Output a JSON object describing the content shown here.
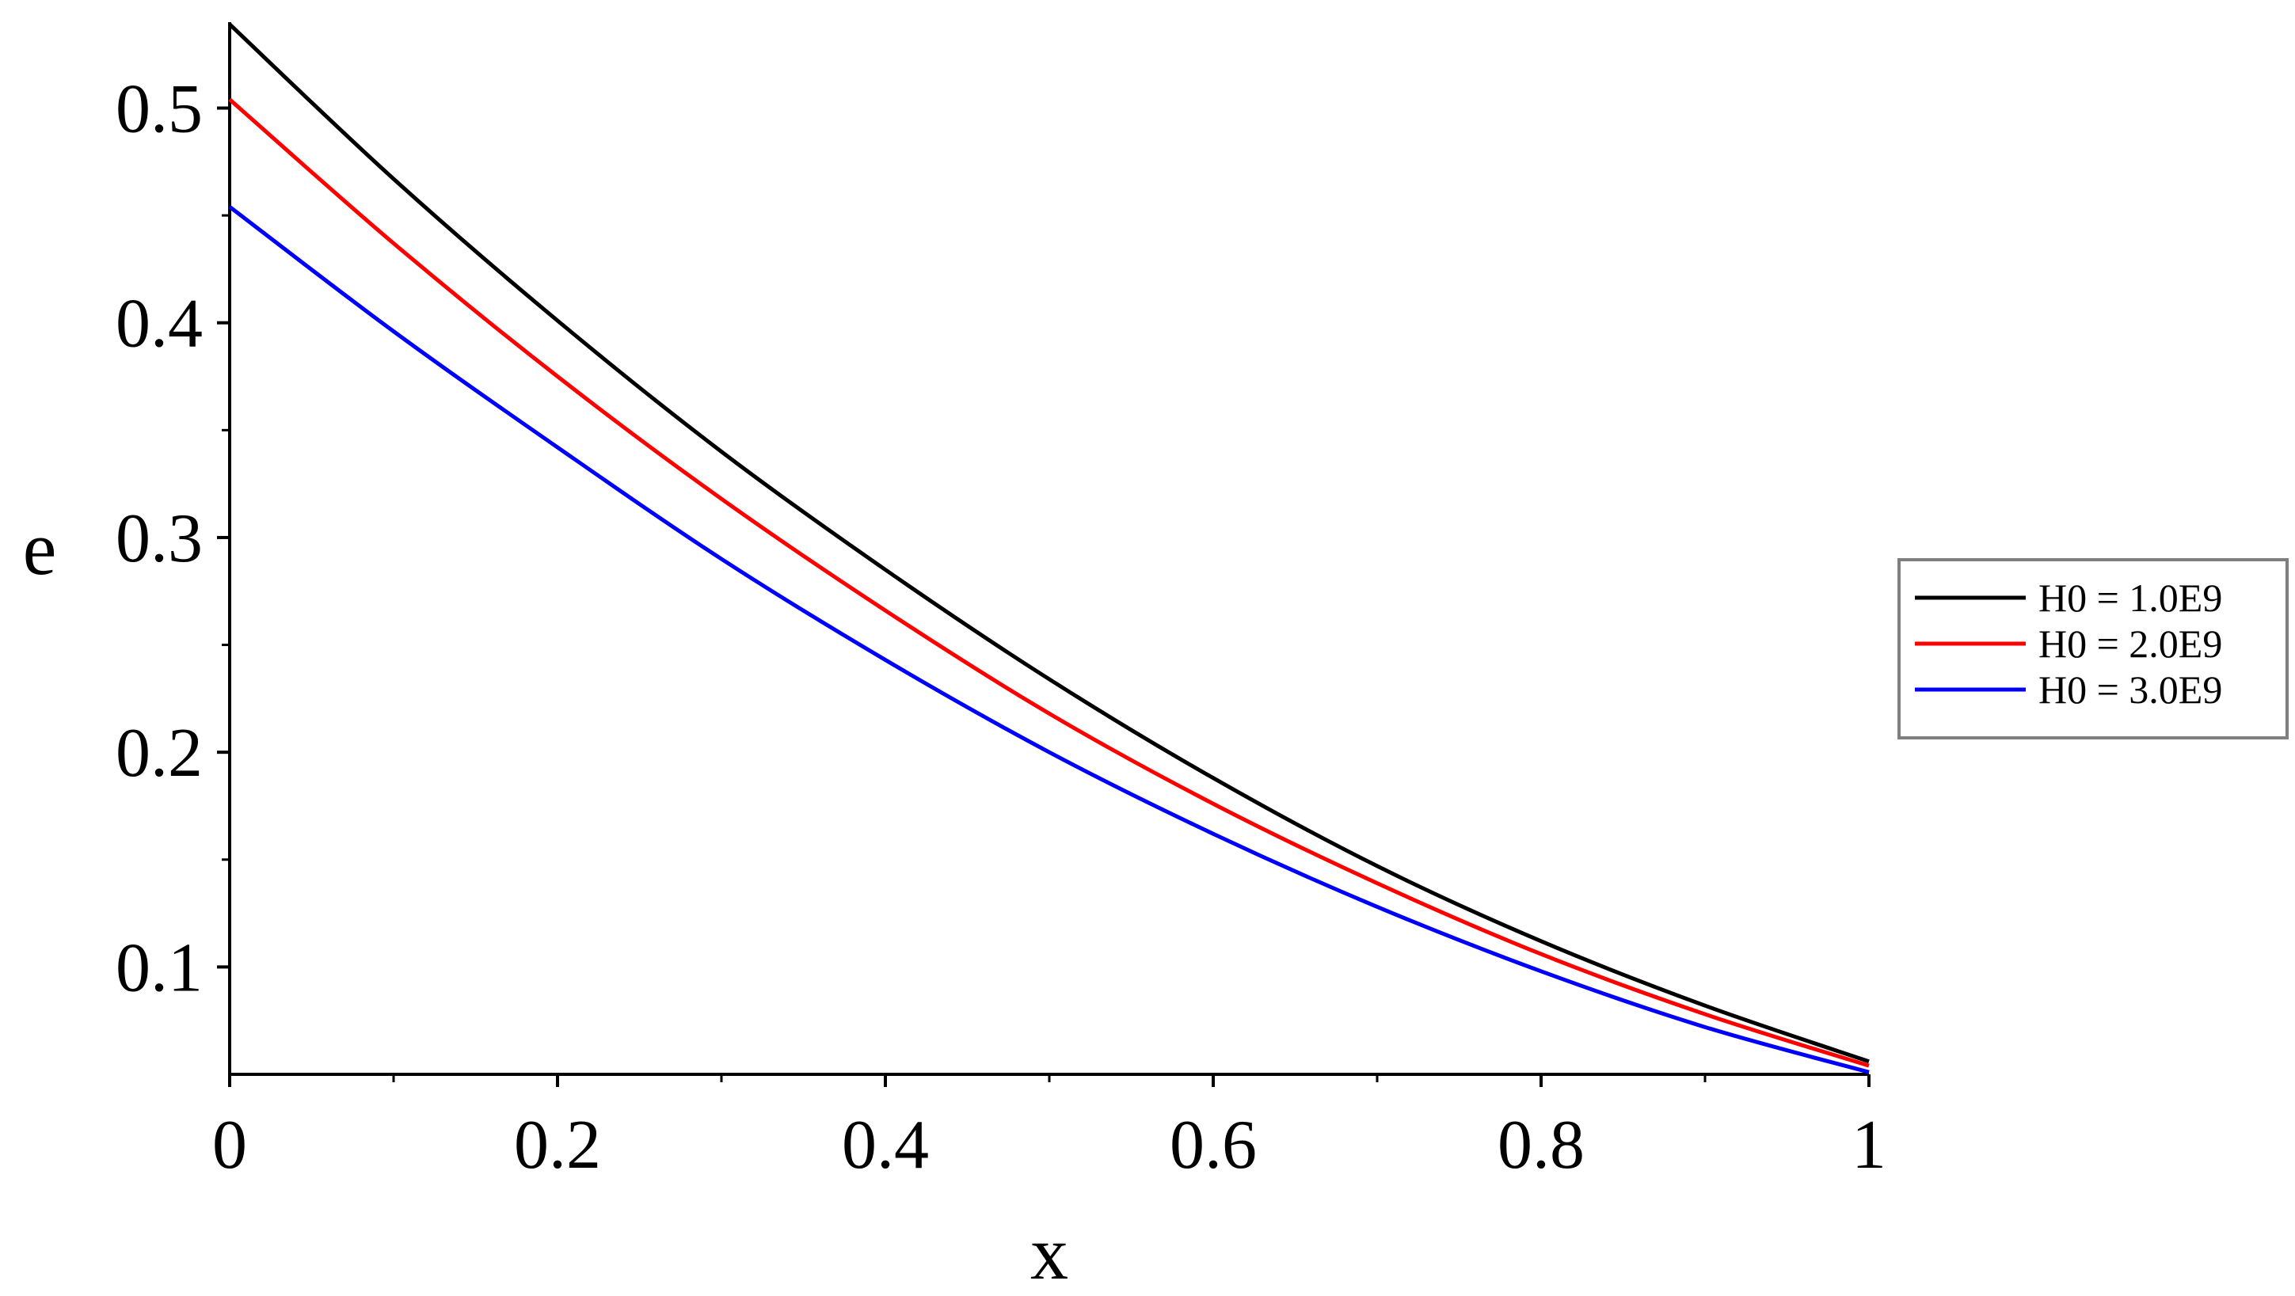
{
  "chart_data": {
    "type": "line",
    "title": "",
    "xlabel": "x",
    "ylabel": "e",
    "xlim": [
      0,
      1
    ],
    "ylim": [
      0.05,
      0.54
    ],
    "x_ticks": [
      0,
      0.2,
      0.4,
      0.6,
      0.8,
      1
    ],
    "x_tick_labels": [
      "0",
      "0.2",
      "0.4",
      "0.6",
      "0.8",
      "1"
    ],
    "y_ticks": [
      0.1,
      0.2,
      0.3,
      0.4,
      0.5
    ],
    "y_tick_labels": [
      "0.1",
      "0.2",
      "0.3",
      "0.4",
      "0.5"
    ],
    "grid": false,
    "legend_position": "right",
    "x": [
      0,
      0.1,
      0.2,
      0.3,
      0.4,
      0.5,
      0.6,
      0.7,
      0.8,
      0.9,
      1.0
    ],
    "series": [
      {
        "name": "H0 = 1.0E9",
        "color": "#000000",
        "values": [
          0.539,
          0.467,
          0.401,
          0.34,
          0.285,
          0.234,
          0.188,
          0.147,
          0.112,
          0.082,
          0.056
        ]
      },
      {
        "name": "H0 = 2.0E9",
        "color": "#ff0000",
        "values": [
          0.504,
          0.437,
          0.375,
          0.318,
          0.266,
          0.218,
          0.176,
          0.139,
          0.106,
          0.078,
          0.054
        ]
      },
      {
        "name": "H0 = 3.0E9",
        "color": "#0000ff",
        "values": [
          0.454,
          0.396,
          0.342,
          0.29,
          0.243,
          0.2,
          0.162,
          0.128,
          0.098,
          0.072,
          0.051
        ]
      }
    ]
  }
}
